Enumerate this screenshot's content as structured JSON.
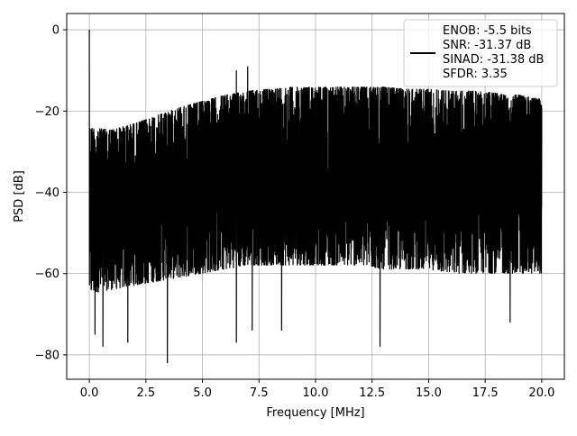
{
  "chart_data": {
    "type": "line",
    "title": "",
    "xlabel": "Frequency [MHz]",
    "ylabel": "PSD [dB]",
    "xlim": [
      -1.0,
      21.0
    ],
    "ylim": [
      -86.0,
      4.0
    ],
    "xticks": [
      0.0,
      2.5,
      5.0,
      7.5,
      10.0,
      12.5,
      15.0,
      17.5,
      20.0
    ],
    "xtick_labels": [
      "0.0",
      "2.5",
      "5.0",
      "7.5",
      "10.0",
      "12.5",
      "15.0",
      "17.5",
      "20.0"
    ],
    "yticks": [
      0,
      -20,
      -40,
      -60,
      -80
    ],
    "ytick_labels": [
      "0",
      "−20",
      "−40",
      "−60",
      "−80"
    ],
    "grid": true,
    "legend_position": "top-right",
    "legend_lines": [
      "ENOB: -5.5 bits",
      "SNR: -31.37 dB",
      "SINAD: -31.38 dB",
      "SFDR: 3.35"
    ],
    "series": [
      {
        "color": "#000000",
        "peaks": [
          {
            "x": 0.0,
            "y": 0.0
          },
          {
            "x": 6.5,
            "y": -10.0
          },
          {
            "x": 7.0,
            "y": -9.0
          }
        ],
        "upper_envelope": [
          {
            "x": 0.0,
            "y": -24
          },
          {
            "x": 1.0,
            "y": -24.5
          },
          {
            "x": 2.0,
            "y": -23
          },
          {
            "x": 3.0,
            "y": -21
          },
          {
            "x": 4.0,
            "y": -19
          },
          {
            "x": 5.0,
            "y": -17.5
          },
          {
            "x": 6.0,
            "y": -16
          },
          {
            "x": 7.0,
            "y": -15
          },
          {
            "x": 8.0,
            "y": -14.5
          },
          {
            "x": 9.0,
            "y": -14
          },
          {
            "x": 10.0,
            "y": -14
          },
          {
            "x": 11.0,
            "y": -14
          },
          {
            "x": 12.0,
            "y": -14
          },
          {
            "x": 13.0,
            "y": -14
          },
          {
            "x": 14.0,
            "y": -14.5
          },
          {
            "x": 15.0,
            "y": -14.5
          },
          {
            "x": 16.0,
            "y": -15
          },
          {
            "x": 17.0,
            "y": -15
          },
          {
            "x": 18.0,
            "y": -15.5
          },
          {
            "x": 19.0,
            "y": -16
          },
          {
            "x": 20.0,
            "y": -17
          }
        ],
        "lower_envelope": [
          {
            "x": 0.0,
            "y": -65
          },
          {
            "x": 1.0,
            "y": -64
          },
          {
            "x": 2.0,
            "y": -63
          },
          {
            "x": 3.0,
            "y": -62
          },
          {
            "x": 4.0,
            "y": -61
          },
          {
            "x": 5.0,
            "y": -60
          },
          {
            "x": 6.0,
            "y": -59
          },
          {
            "x": 7.0,
            "y": -58
          },
          {
            "x": 8.0,
            "y": -58
          },
          {
            "x": 9.0,
            "y": -58
          },
          {
            "x": 10.0,
            "y": -58
          },
          {
            "x": 11.0,
            "y": -58
          },
          {
            "x": 12.0,
            "y": -58
          },
          {
            "x": 13.0,
            "y": -59
          },
          {
            "x": 14.0,
            "y": -59
          },
          {
            "x": 15.0,
            "y": -59
          },
          {
            "x": 16.0,
            "y": -60
          },
          {
            "x": 17.0,
            "y": -60
          },
          {
            "x": 18.0,
            "y": -60
          },
          {
            "x": 19.0,
            "y": -60
          },
          {
            "x": 20.0,
            "y": -60
          }
        ],
        "deep_dips": [
          {
            "x": 0.25,
            "y": -75
          },
          {
            "x": 0.6,
            "y": -78
          },
          {
            "x": 1.7,
            "y": -77
          },
          {
            "x": 3.45,
            "y": -82
          },
          {
            "x": 6.5,
            "y": -77
          },
          {
            "x": 7.2,
            "y": -74
          },
          {
            "x": 8.5,
            "y": -74
          },
          {
            "x": 12.85,
            "y": -78
          },
          {
            "x": 18.6,
            "y": -72
          }
        ]
      }
    ]
  }
}
